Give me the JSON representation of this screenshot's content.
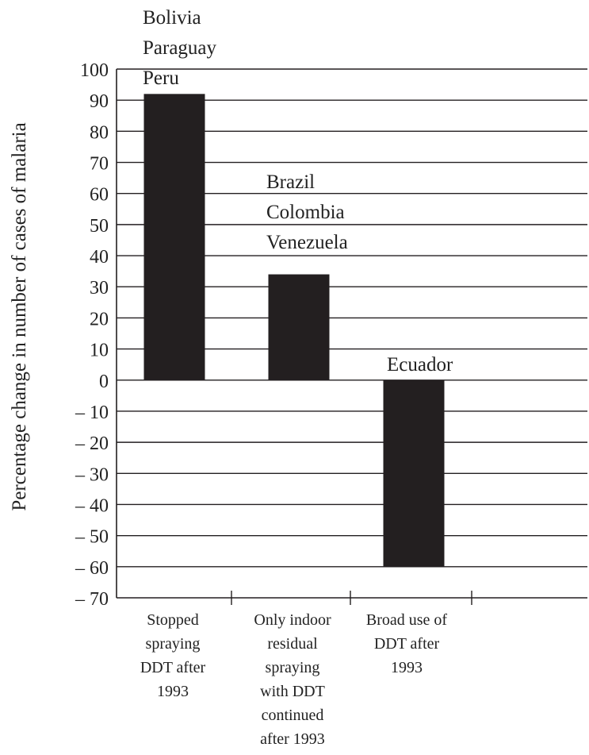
{
  "chart_data": {
    "type": "bar",
    "title": "",
    "xlabel": "",
    "ylabel": "Percentage change in number of cases of malaria",
    "ylim": [
      -70,
      100
    ],
    "yticks": [
      100,
      90,
      80,
      70,
      60,
      50,
      40,
      30,
      20,
      10,
      0,
      -10,
      -20,
      -30,
      -40,
      -50,
      -60,
      -70
    ],
    "ytick_labels": [
      "100",
      "90",
      "80",
      "70",
      "60",
      "50",
      "40",
      "30",
      "20",
      "10",
      "0",
      "– 10",
      "– 20",
      "– 30",
      "– 40",
      "– 50",
      "– 60",
      "– 70"
    ],
    "grid": true,
    "categories": [
      [
        "Stopped",
        "spraying",
        "DDT after",
        "1993"
      ],
      [
        "Only indoor",
        "residual",
        "spraying",
        "with DDT",
        "continued",
        "after 1993"
      ],
      [
        "Broad use of",
        "DDT after",
        "1993"
      ]
    ],
    "values": [
      92,
      34,
      -60
    ],
    "bar_labels": [
      [
        "Bolivia",
        "Paraguay",
        "Peru"
      ],
      [
        "Brazil",
        "Colombia",
        "Venezuela"
      ],
      [
        "Ecuador"
      ]
    ],
    "colors": {
      "bar": "#231f20",
      "axis": "#231f20",
      "grid": "#231f20"
    }
  }
}
